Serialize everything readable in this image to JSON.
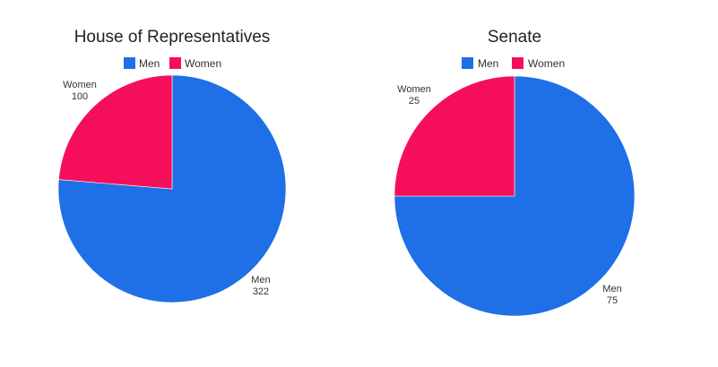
{
  "chart_data": [
    {
      "type": "pie",
      "title": "House of Representatives",
      "categories": [
        "Men",
        "Women"
      ],
      "values": [
        322,
        100
      ],
      "colors": [
        "#1f6fe6",
        "#f50f5a"
      ],
      "legend": "top-center"
    },
    {
      "type": "pie",
      "title": "Senate",
      "categories": [
        "Men",
        "Women"
      ],
      "values": [
        75,
        25
      ],
      "colors": [
        "#1f6fe6",
        "#f50f5a"
      ],
      "legend": "top-center"
    }
  ]
}
